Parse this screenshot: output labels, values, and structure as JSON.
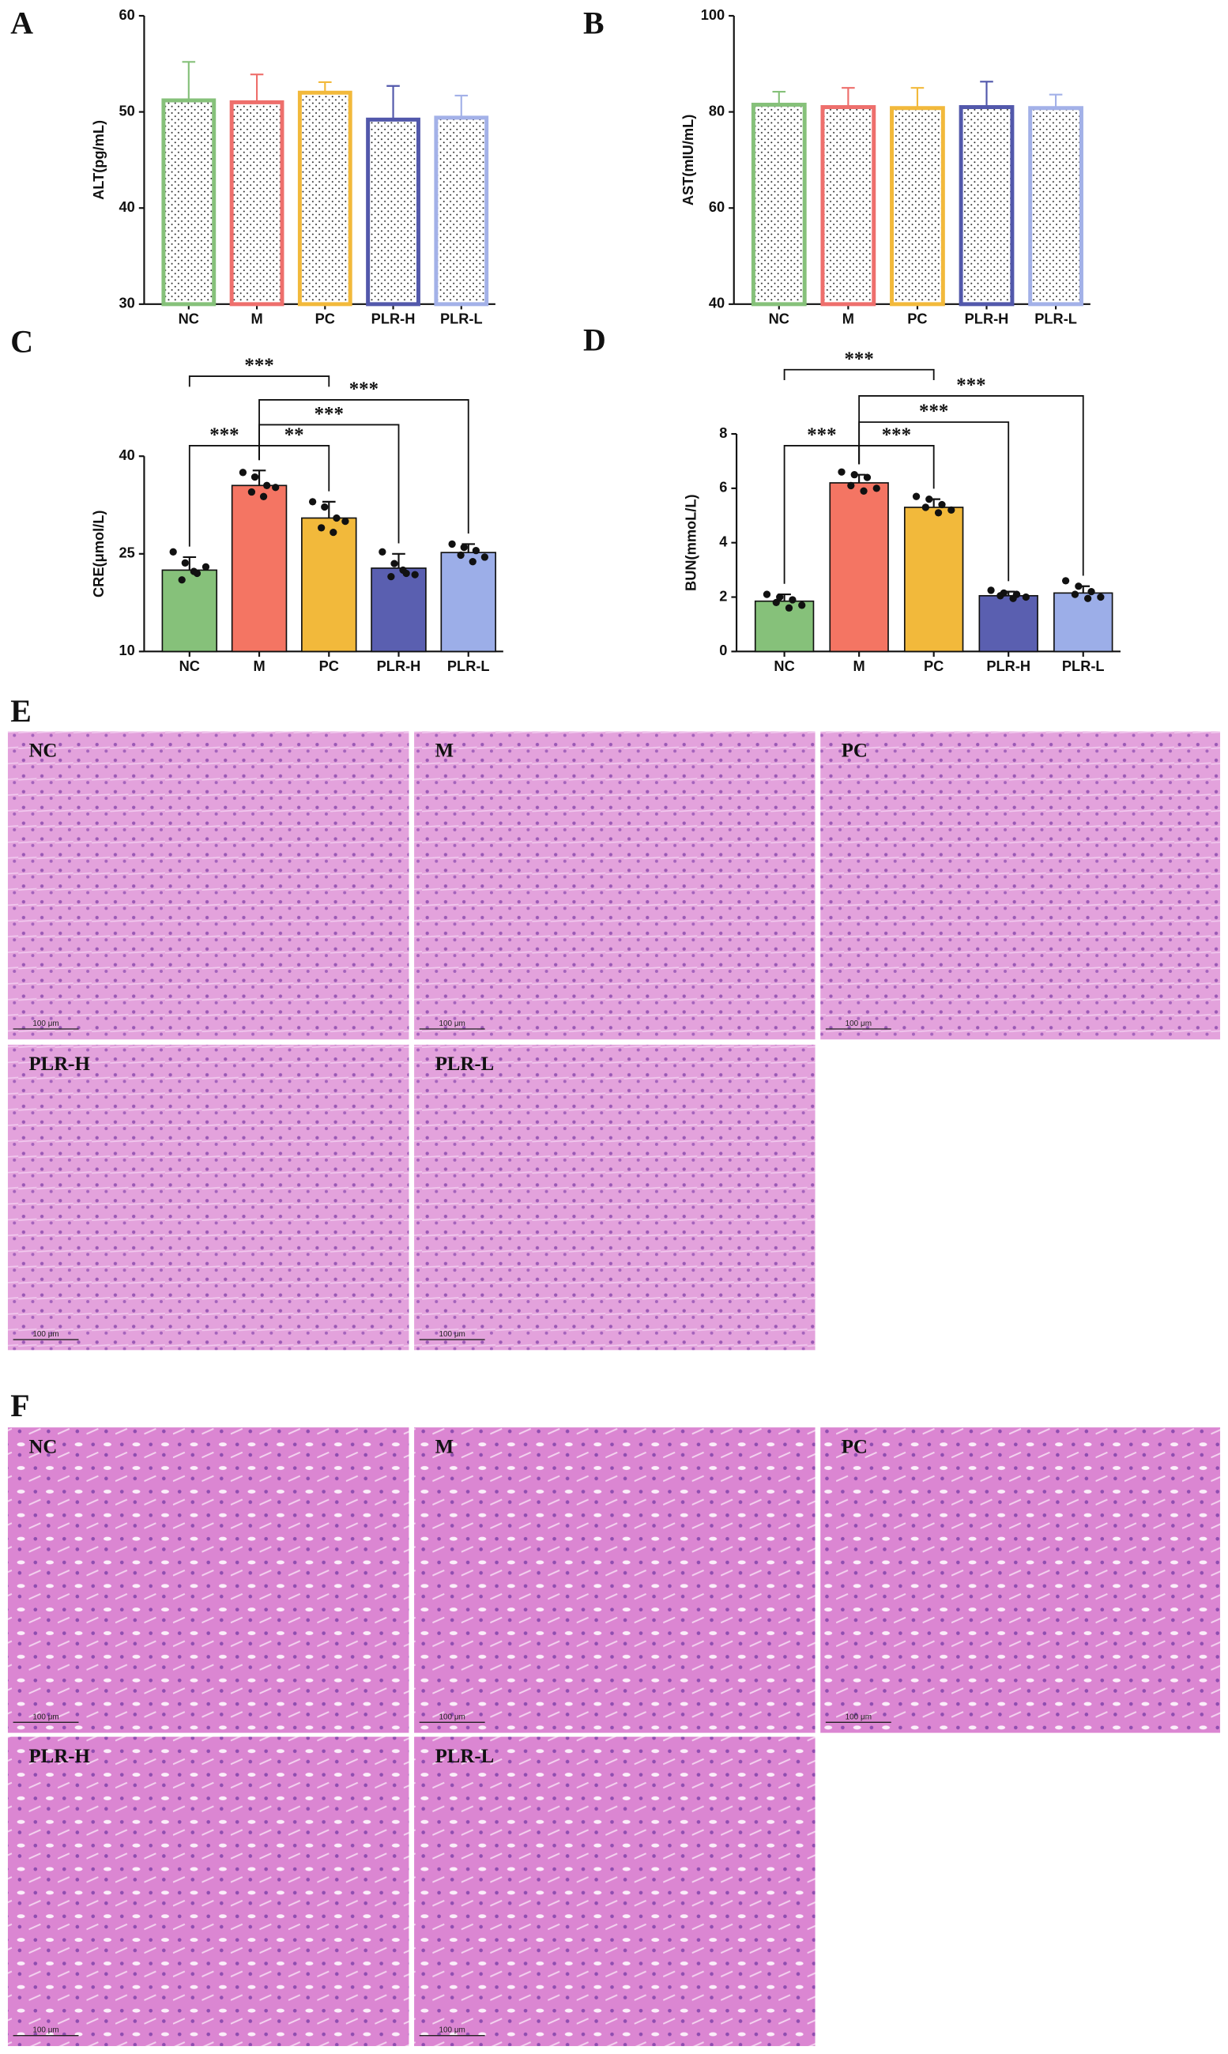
{
  "chart_data": [
    {
      "type": "bar",
      "panel": "A",
      "y_label": "ALT(pg/mL)",
      "style": "dotted-outline",
      "error_bars": "upper",
      "categories": [
        "NC",
        "M",
        "PC",
        "PLR-H",
        "PLR-L"
      ],
      "colors": [
        "#86c17a",
        "#ee6f6c",
        "#f2b93b",
        "#5258ab",
        "#a3b1e8"
      ],
      "values": [
        51.2,
        51.0,
        52.0,
        49.2,
        49.4
      ],
      "errors": [
        4.0,
        2.9,
        1.1,
        3.5,
        2.3
      ],
      "ylim": [
        30,
        60
      ],
      "yticks": [
        30,
        40,
        50,
        60
      ]
    },
    {
      "type": "bar",
      "panel": "B",
      "y_label": "AST(mIU/mL)",
      "style": "dotted-outline",
      "error_bars": "upper",
      "categories": [
        "NC",
        "M",
        "PC",
        "PLR-H",
        "PLR-L"
      ],
      "colors": [
        "#86c17a",
        "#ee6f6c",
        "#f2b93b",
        "#5258ab",
        "#a3b1e8"
      ],
      "values": [
        81.5,
        81.0,
        80.8,
        81.0,
        80.8
      ],
      "errors": [
        2.7,
        4.0,
        4.2,
        5.3,
        2.8
      ],
      "ylim": [
        40,
        100
      ],
      "yticks": [
        40,
        60,
        80,
        100
      ]
    },
    {
      "type": "bar",
      "panel": "C",
      "y_label": "CRE(μmol/L)",
      "style": "filled-points",
      "error_bars": "both",
      "categories": [
        "NC",
        "M",
        "PC",
        "PLR-H",
        "PLR-L"
      ],
      "colors": [
        "#86c17a",
        "#f47563",
        "#f2b93b",
        "#5a5fb0",
        "#9caee8"
      ],
      "values": [
        22.5,
        35.5,
        30.5,
        22.8,
        25.2
      ],
      "errors": [
        2.0,
        2.3,
        2.5,
        2.2,
        1.3
      ],
      "points": [
        [
          25.3,
          23.6,
          22.0,
          21.0,
          22.3,
          23.0
        ],
        [
          37.5,
          36.8,
          35.5,
          34.5,
          33.8,
          35.2
        ],
        [
          33.0,
          32.2,
          30.5,
          29.0,
          28.3,
          30.0
        ],
        [
          25.3,
          23.5,
          22.0,
          21.5,
          22.5,
          21.8
        ],
        [
          26.5,
          26.0,
          25.5,
          24.8,
          23.8,
          24.5
        ]
      ],
      "ylim": [
        10,
        40
      ],
      "yticks": [
        10,
        25,
        40
      ],
      "significance": [
        {
          "groups": [
            "NC",
            "PC"
          ],
          "label": "***"
        },
        {
          "groups": [
            "M",
            "PLR-L"
          ],
          "label": "***"
        },
        {
          "groups": [
            "M",
            "PLR-H"
          ],
          "label": "***"
        },
        {
          "groups": [
            "NC",
            "M"
          ],
          "label": "***"
        },
        {
          "groups": [
            "M",
            "PC"
          ],
          "label": "**"
        }
      ]
    },
    {
      "type": "bar",
      "panel": "D",
      "y_label": "BUN(mmoL/L)",
      "style": "filled-points",
      "error_bars": "both",
      "categories": [
        "NC",
        "M",
        "PC",
        "PLR-H",
        "PLR-L"
      ],
      "colors": [
        "#86c17a",
        "#f47563",
        "#f2b93b",
        "#5a5fb0",
        "#9caee8"
      ],
      "values": [
        1.85,
        6.2,
        5.3,
        2.05,
        2.15
      ],
      "errors": [
        0.25,
        0.3,
        0.3,
        0.15,
        0.25
      ],
      "points": [
        [
          2.1,
          2.0,
          1.9,
          1.8,
          1.6,
          1.7
        ],
        [
          6.6,
          6.5,
          6.4,
          6.1,
          5.9,
          6.0
        ],
        [
          5.7,
          5.6,
          5.4,
          5.3,
          5.1,
          5.2
        ],
        [
          2.25,
          2.15,
          2.1,
          2.05,
          1.95,
          2.0
        ],
        [
          2.6,
          2.4,
          2.2,
          2.1,
          1.95,
          2.0
        ]
      ],
      "ylim": [
        0,
        8
      ],
      "yticks": [
        0,
        2,
        4,
        6,
        8
      ],
      "significance": [
        {
          "groups": [
            "NC",
            "PC"
          ],
          "label": "***"
        },
        {
          "groups": [
            "M",
            "PLR-L"
          ],
          "label": "***"
        },
        {
          "groups": [
            "M",
            "PLR-H"
          ],
          "label": "***"
        },
        {
          "groups": [
            "NC",
            "M"
          ],
          "label": "***"
        },
        {
          "groups": [
            "M",
            "PC"
          ],
          "label": "***"
        }
      ]
    }
  ],
  "histology": [
    {
      "panel": "E",
      "images": [
        "NC",
        "M",
        "PC",
        "PLR-H",
        "PLR-L"
      ],
      "scale_bar": "100 μm"
    },
    {
      "panel": "F",
      "images": [
        "NC",
        "M",
        "PC",
        "PLR-H",
        "PLR-L"
      ],
      "scale_bar": "100 μm"
    }
  ]
}
